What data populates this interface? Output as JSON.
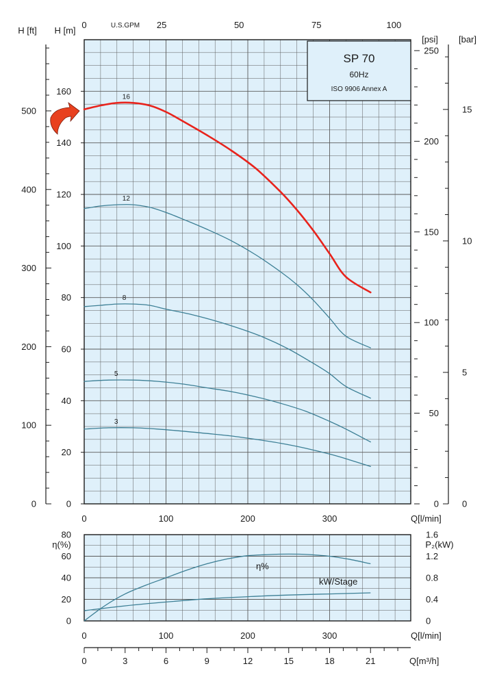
{
  "info_box": {
    "title": "SP 70",
    "frequency": "60Hz",
    "standard": "ISO 9906 Annex A"
  },
  "colors": {
    "plot_bg": "#dff0fa",
    "grid": "#5a5a5a",
    "curve": "#3c7f95",
    "highlight": "#e8231c",
    "arrow": "#e8411f"
  },
  "chart_data": [
    {
      "type": "line",
      "name": "head-curves",
      "xlabel": "Q[l/min]",
      "ylabel": "H [m]",
      "ylabel_ft": "H [ft]",
      "top_axis_label": "U.S.GPM",
      "right_axis_psi_label": "[psi]",
      "right_axis_bar_label": "[bar]",
      "xlim": [
        0,
        400
      ],
      "ylim": [
        0,
        180
      ],
      "x_ticks": [
        0,
        100,
        200,
        300
      ],
      "y_ticks": [
        0,
        20,
        40,
        60,
        80,
        100,
        120,
        140,
        160
      ],
      "gpm_ticks": [
        0,
        25,
        50,
        75,
        100
      ],
      "ft_ticks": [
        0,
        100,
        200,
        300,
        400,
        500
      ],
      "psi_ticks": [
        0,
        50,
        100,
        150,
        200,
        250
      ],
      "bar_ticks": [
        0,
        5,
        10,
        15
      ],
      "grid": true,
      "series": [
        {
          "name": "16",
          "highlight": true,
          "x": [
            0,
            20,
            40,
            60,
            80,
            100,
            120,
            150,
            180,
            210,
            240,
            260,
            280,
            300,
            320,
            350
          ],
          "y": [
            153,
            154.5,
            155.5,
            155.5,
            154.5,
            152,
            148.5,
            143,
            137,
            130,
            121,
            114,
            106,
            97,
            88,
            82
          ]
        },
        {
          "name": "12",
          "x": [
            0,
            20,
            40,
            60,
            80,
            100,
            120,
            150,
            180,
            210,
            240,
            260,
            280,
            300,
            320,
            350
          ],
          "y": [
            114.5,
            115.5,
            116,
            116,
            115,
            113,
            110.5,
            106.5,
            102,
            96.5,
            90,
            85,
            79,
            72,
            65,
            60.5
          ]
        },
        {
          "name": "8",
          "x": [
            0,
            20,
            40,
            60,
            80,
            100,
            130,
            160,
            190,
            220,
            250,
            280,
            300,
            320,
            350
          ],
          "y": [
            76.5,
            77,
            77.5,
            77.5,
            77,
            75.5,
            73.5,
            71,
            68,
            64.5,
            60,
            54.5,
            50.5,
            45.5,
            41
          ]
        },
        {
          "name": "5",
          "x": [
            0,
            30,
            60,
            90,
            120,
            150,
            180,
            210,
            240,
            270,
            300,
            320,
            350
          ],
          "y": [
            47.5,
            48,
            48,
            47.5,
            46.5,
            45,
            43.5,
            41.5,
            39,
            36,
            32,
            29,
            24
          ]
        },
        {
          "name": "3",
          "x": [
            0,
            30,
            60,
            90,
            120,
            150,
            180,
            210,
            240,
            270,
            300,
            320,
            350
          ],
          "y": [
            29,
            29.5,
            29.5,
            29,
            28.2,
            27.3,
            26.3,
            25,
            23.5,
            21.6,
            19.3,
            17.5,
            14.5
          ]
        }
      ]
    },
    {
      "type": "line",
      "name": "efficiency-power",
      "xlabel": "Q[l/min]",
      "ylabel": "η(%)",
      "right_axis_label": "P₂(kW)",
      "bottom_axis_label": "Q[m³/h]",
      "xlim": [
        0,
        400
      ],
      "ylim": [
        0,
        80
      ],
      "x_ticks": [
        0,
        100,
        200,
        300
      ],
      "y_ticks": [
        0,
        20,
        40,
        60,
        80
      ],
      "kw_ticks": [
        "0",
        "0.4",
        "0.8",
        "1.2",
        "1.6"
      ],
      "m3h_ticks": [
        0,
        3,
        6,
        9,
        12,
        15,
        18,
        21
      ],
      "grid": true,
      "series": [
        {
          "name": "η%",
          "x": [
            0,
            25,
            50,
            75,
            100,
            125,
            150,
            175,
            200,
            225,
            250,
            275,
            300,
            325,
            350
          ],
          "y": [
            0,
            14,
            25,
            33,
            40,
            47,
            53,
            57.5,
            60.5,
            61.5,
            62,
            61.5,
            60,
            57,
            53
          ]
        },
        {
          "name": "kW/Stage",
          "x": [
            0,
            50,
            100,
            150,
            200,
            250,
            300,
            350
          ],
          "kw": [
            0.19,
            0.28,
            0.35,
            0.41,
            0.45,
            0.48,
            0.5,
            0.52
          ]
        }
      ]
    }
  ]
}
